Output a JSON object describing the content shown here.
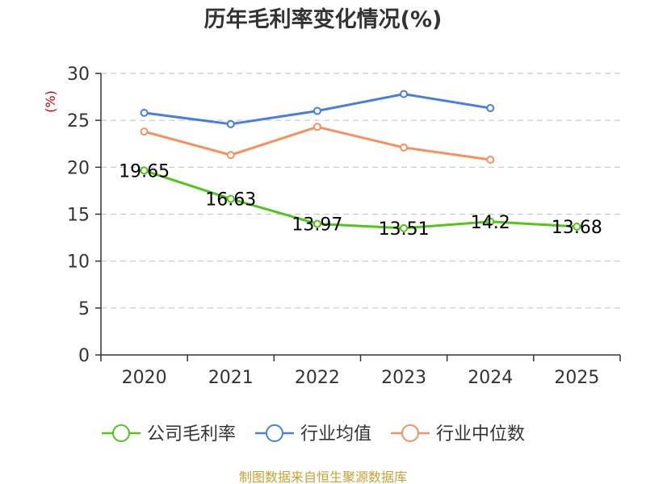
{
  "chart_data": {
    "type": "line",
    "title": "历年毛利率变化情况(%)",
    "ylabel": "(%)",
    "xlabel": "",
    "categories": [
      "2020",
      "2021",
      "2022",
      "2023",
      "2024",
      "2025"
    ],
    "yticks": [
      0,
      5,
      10,
      15,
      20,
      25,
      30
    ],
    "ylim": [
      0,
      30
    ],
    "grid": true,
    "legend_position": "bottom",
    "series": [
      {
        "name": "公司毛利率",
        "color": "#52c41a",
        "values": [
          19.65,
          16.63,
          13.97,
          13.51,
          14.2,
          13.68
        ],
        "labels": [
          "19.65",
          "16.63",
          "13.97",
          "13.51",
          "14.2",
          "13.68"
        ]
      },
      {
        "name": "行业均值",
        "color": "#4a7fd9",
        "values": [
          25.8,
          24.6,
          26.0,
          27.8,
          26.3,
          null
        ]
      },
      {
        "name": "行业中位数",
        "color": "#f59160",
        "values": [
          23.8,
          21.3,
          24.3,
          22.1,
          20.8,
          null
        ]
      }
    ]
  },
  "source": "制图数据来自恒生聚源数据库"
}
